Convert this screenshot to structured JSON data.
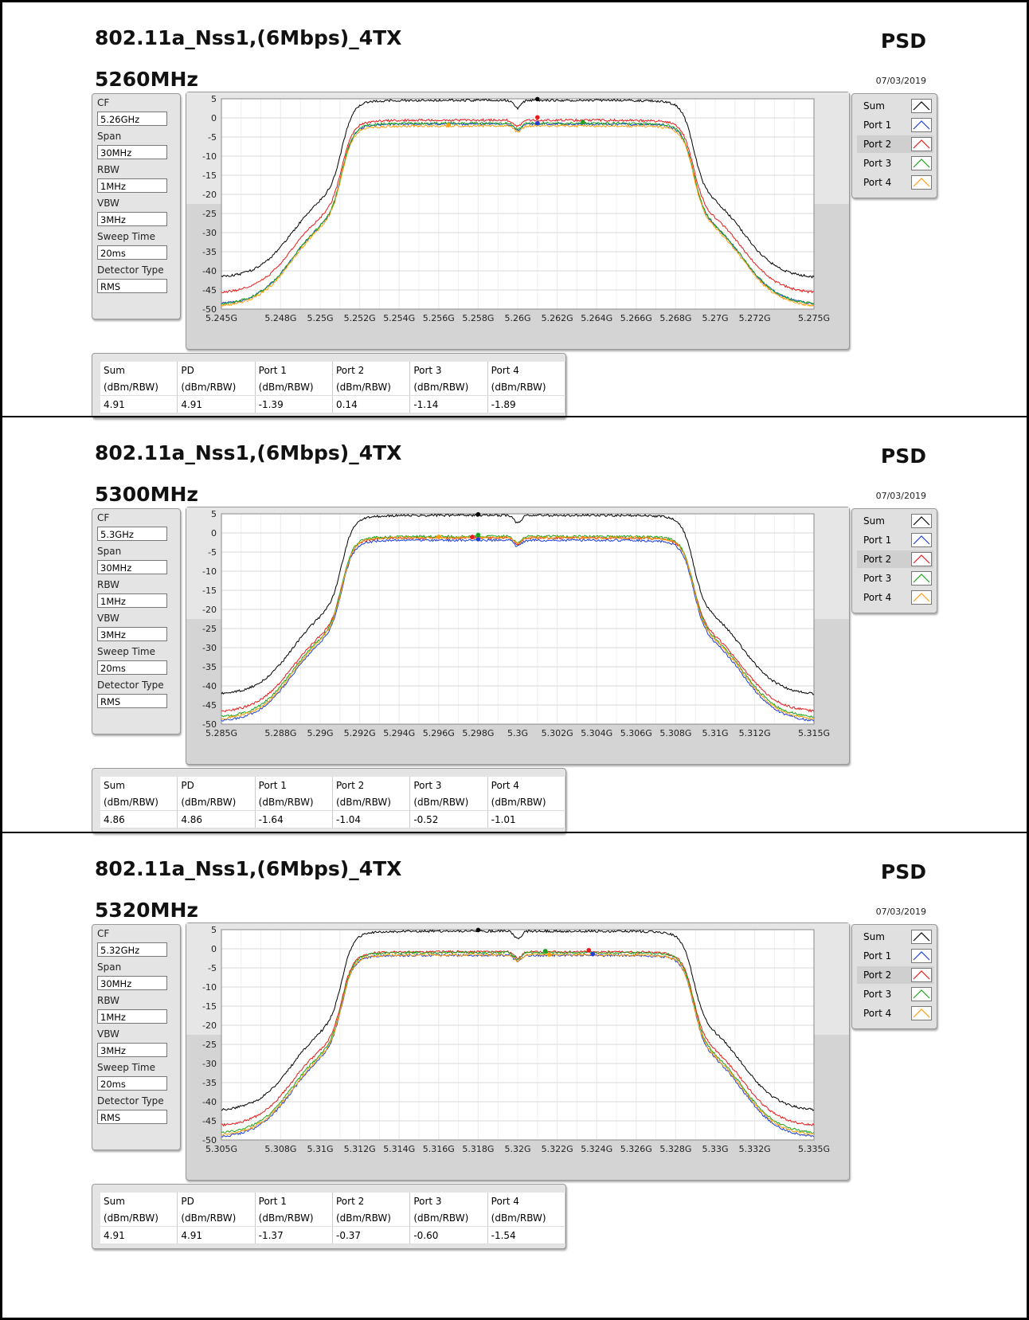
{
  "panels": [
    {
      "title": "802.11a_Nss1,(6Mbps)_4TX",
      "psd_label": "PSD",
      "frequency": "5260MHz",
      "date": "07/03/2019",
      "params": [
        {
          "label": "CF",
          "value": "5.26GHz"
        },
        {
          "label": "Span",
          "value": "30MHz"
        },
        {
          "label": "RBW",
          "value": "1MHz"
        },
        {
          "label": "VBW",
          "value": "3MHz"
        },
        {
          "label": "Sweep Time",
          "value": "20ms"
        },
        {
          "label": "Detector Type",
          "value": "RMS"
        }
      ],
      "results": {
        "headers": [
          "Sum",
          "PD",
          "Port 1",
          "Port 2",
          "Port 3",
          "Port 4"
        ],
        "units": [
          "(dBm/RBW)",
          "(dBm/RBW)",
          "(dBm/RBW)",
          "(dBm/RBW)",
          "(dBm/RBW)",
          "(dBm/RBW)"
        ],
        "values": [
          "4.91",
          "4.91",
          "-1.39",
          "0.14",
          "-1.14",
          "-1.89"
        ]
      },
      "chart_data": {
        "type": "line",
        "xlim": [
          5.245,
          5.275
        ],
        "ylim": [
          -50,
          5
        ],
        "x_tick_labels": [
          "5.245G",
          "5.248G",
          "5.25G",
          "5.252G",
          "5.254G",
          "5.256G",
          "5.258G",
          "5.26G",
          "5.262G",
          "5.264G",
          "5.266G",
          "5.268G",
          "5.27G",
          "5.272G",
          "5.275G"
        ],
        "y_tick_labels": [
          "5",
          "0",
          "-5",
          "-10",
          "-15",
          "-20",
          "-25",
          "-30",
          "-35",
          "-40",
          "-45",
          "-50"
        ],
        "grid": true,
        "center_ghz": 5.26,
        "series": [
          {
            "name": "Sum",
            "color": "#000000",
            "plateau": 4.6,
            "floor": -42,
            "dip": 2.0,
            "peak": {
              "x": 5.261,
              "y": 4.91
            }
          },
          {
            "name": "Port 1",
            "color": "#1f3fd6",
            "plateau": -1.6,
            "floor": -49,
            "dip": 1.6,
            "peak": {
              "x": 5.261,
              "y": -1.39
            }
          },
          {
            "name": "Port 2",
            "color": "#e81a1a",
            "plateau": -0.6,
            "floor": -46,
            "dip": 1.6,
            "peak": {
              "x": 5.261,
              "y": 0.14
            }
          },
          {
            "name": "Port 3",
            "color": "#1ca31c",
            "plateau": -1.4,
            "floor": -49,
            "dip": 1.6,
            "peak": {
              "x": 5.2633,
              "y": -1.14
            }
          },
          {
            "name": "Port 4",
            "color": "#ff9e0f",
            "plateau": -2.1,
            "floor": -49.5,
            "dip": 1.6,
            "peak": {
              "x": 5.2565,
              "y": -1.89
            }
          }
        ]
      }
    },
    {
      "title": "802.11a_Nss1,(6Mbps)_4TX",
      "psd_label": "PSD",
      "frequency": "5300MHz",
      "date": "07/03/2019",
      "params": [
        {
          "label": "CF",
          "value": "5.3GHz"
        },
        {
          "label": "Span",
          "value": "30MHz"
        },
        {
          "label": "RBW",
          "value": "1MHz"
        },
        {
          "label": "VBW",
          "value": "3MHz"
        },
        {
          "label": "Sweep Time",
          "value": "20ms"
        },
        {
          "label": "Detector Type",
          "value": "RMS"
        }
      ],
      "results": {
        "headers": [
          "Sum",
          "PD",
          "Port 1",
          "Port 2",
          "Port 3",
          "Port 4"
        ],
        "units": [
          "(dBm/RBW)",
          "(dBm/RBW)",
          "(dBm/RBW)",
          "(dBm/RBW)",
          "(dBm/RBW)",
          "(dBm/RBW)"
        ],
        "values": [
          "4.86",
          "4.86",
          "-1.64",
          "-1.04",
          "-0.52",
          "-1.01"
        ]
      },
      "chart_data": {
        "type": "line",
        "xlim": [
          5.285,
          5.315
        ],
        "ylim": [
          -50,
          5
        ],
        "x_tick_labels": [
          "5.285G",
          "5.288G",
          "5.29G",
          "5.292G",
          "5.294G",
          "5.296G",
          "5.298G",
          "5.3G",
          "5.302G",
          "5.304G",
          "5.306G",
          "5.308G",
          "5.31G",
          "5.312G",
          "5.315G"
        ],
        "y_tick_labels": [
          "5",
          "0",
          "-5",
          "-10",
          "-15",
          "-20",
          "-25",
          "-30",
          "-35",
          "-40",
          "-45",
          "-50"
        ],
        "grid": true,
        "center_ghz": 5.3,
        "series": [
          {
            "name": "Sum",
            "color": "#000000",
            "plateau": 4.6,
            "floor": -42.5,
            "dip": 2.0,
            "peak": {
              "x": 5.298,
              "y": 4.86
            }
          },
          {
            "name": "Port 1",
            "color": "#1f3fd6",
            "plateau": -1.9,
            "floor": -49.5,
            "dip": 1.6,
            "peak": {
              "x": 5.298,
              "y": -1.64
            }
          },
          {
            "name": "Port 2",
            "color": "#e81a1a",
            "plateau": -1.3,
            "floor": -47,
            "dip": 1.6,
            "peak": {
              "x": 5.2977,
              "y": -1.04
            }
          },
          {
            "name": "Port 3",
            "color": "#1ca31c",
            "plateau": -0.9,
            "floor": -48.5,
            "dip": 1.6,
            "peak": {
              "x": 5.298,
              "y": -0.52
            }
          },
          {
            "name": "Port 4",
            "color": "#ff9e0f",
            "plateau": -1.2,
            "floor": -49,
            "dip": 1.6,
            "peak": {
              "x": 5.296,
              "y": -1.01
            }
          }
        ]
      }
    },
    {
      "title": "802.11a_Nss1,(6Mbps)_4TX",
      "psd_label": "PSD",
      "frequency": "5320MHz",
      "date": "07/03/2019",
      "params": [
        {
          "label": "CF",
          "value": "5.32GHz"
        },
        {
          "label": "Span",
          "value": "30MHz"
        },
        {
          "label": "RBW",
          "value": "1MHz"
        },
        {
          "label": "VBW",
          "value": "3MHz"
        },
        {
          "label": "Sweep Time",
          "value": "20ms"
        },
        {
          "label": "Detector Type",
          "value": "RMS"
        }
      ],
      "results": {
        "headers": [
          "Sum",
          "PD",
          "Port 1",
          "Port 2",
          "Port 3",
          "Port 4"
        ],
        "units": [
          "(dBm/RBW)",
          "(dBm/RBW)",
          "(dBm/RBW)",
          "(dBm/RBW)",
          "(dBm/RBW)",
          "(dBm/RBW)"
        ],
        "values": [
          "4.91",
          "4.91",
          "-1.37",
          "-0.37",
          "-0.60",
          "-1.54"
        ]
      },
      "chart_data": {
        "type": "line",
        "xlim": [
          5.305,
          5.335
        ],
        "ylim": [
          -50,
          5
        ],
        "x_tick_labels": [
          "5.305G",
          "5.308G",
          "5.31G",
          "5.312G",
          "5.314G",
          "5.316G",
          "5.318G",
          "5.32G",
          "5.322G",
          "5.324G",
          "5.326G",
          "5.328G",
          "5.33G",
          "5.332G",
          "5.335G"
        ],
        "y_tick_labels": [
          "5",
          "0",
          "-5",
          "-10",
          "-15",
          "-20",
          "-25",
          "-30",
          "-35",
          "-40",
          "-45",
          "-50"
        ],
        "grid": true,
        "center_ghz": 5.32,
        "series": [
          {
            "name": "Sum",
            "color": "#000000",
            "plateau": 4.6,
            "floor": -42.5,
            "dip": 2.0,
            "peak": {
              "x": 5.318,
              "y": 4.91
            }
          },
          {
            "name": "Port 1",
            "color": "#1f3fd6",
            "plateau": -1.7,
            "floor": -49.5,
            "dip": 1.6,
            "peak": {
              "x": 5.3238,
              "y": -1.37
            }
          },
          {
            "name": "Port 2",
            "color": "#e81a1a",
            "plateau": -0.8,
            "floor": -46.5,
            "dip": 1.6,
            "peak": {
              "x": 5.3236,
              "y": -0.37
            }
          },
          {
            "name": "Port 3",
            "color": "#1ca31c",
            "plateau": -1.0,
            "floor": -48.5,
            "dip": 1.6,
            "peak": {
              "x": 5.3214,
              "y": -0.6
            }
          },
          {
            "name": "Port 4",
            "color": "#ff9e0f",
            "plateau": -1.6,
            "floor": -49,
            "dip": 1.6,
            "peak": {
              "x": 5.3216,
              "y": -1.54
            }
          }
        ]
      }
    }
  ]
}
